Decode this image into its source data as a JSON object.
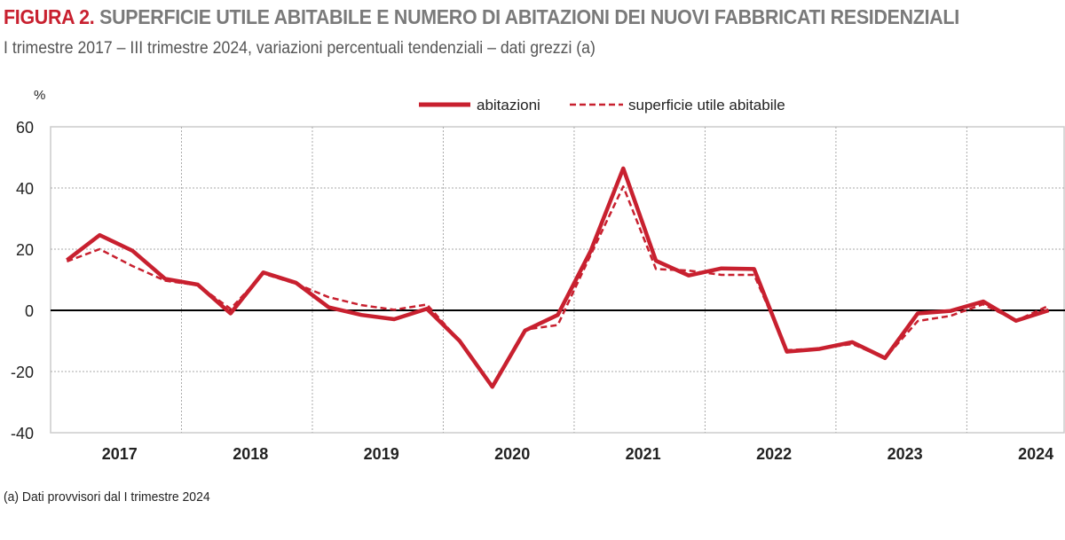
{
  "header": {
    "figure_label": "FIGURA 2.",
    "title": "SUPERFICIE UTILE ABITABILE E NUMERO DI ABITAZIONI DEI NUOVI FABBRICATI RESIDENZIALI",
    "subtitle": "I trimestre 2017 – III trimestre 2024, variazioni percentuali tendenziali – dati grezzi (a)"
  },
  "footnote": "(a) Dati provvisori dal I trimestre 2024",
  "chart_data": {
    "type": "line",
    "ylabel": "%",
    "ylim": [
      -40,
      60
    ],
    "yticks": [
      "60",
      "40",
      "20",
      "0",
      "-20",
      "-40"
    ],
    "year_labels": [
      "2017",
      "2018",
      "2019",
      "2020",
      "2021",
      "2022",
      "2023",
      "2024"
    ],
    "x": [
      "2017 Q1",
      "2017 Q2",
      "2017 Q3",
      "2017 Q4",
      "2018 Q1",
      "2018 Q2",
      "2018 Q3",
      "2018 Q4",
      "2019 Q1",
      "2019 Q2",
      "2019 Q3",
      "2019 Q4",
      "2020 Q1",
      "2020 Q2",
      "2020 Q3",
      "2020 Q4",
      "2021 Q1",
      "2021 Q2",
      "2021 Q3",
      "2021 Q4",
      "2022 Q1",
      "2022 Q2",
      "2022 Q3",
      "2022 Q4",
      "2023 Q1",
      "2023 Q2",
      "2023 Q3",
      "2023 Q4",
      "2024 Q1",
      "2024 Q2",
      "2024 Q3"
    ],
    "grid": true,
    "legend_position": "top",
    "series": [
      {
        "name": "abitazioni",
        "style": "solid",
        "color": "#c8202f",
        "values": [
          16.4,
          24.6,
          19.5,
          10.3,
          8.4,
          -1.0,
          12.4,
          9.0,
          1.0,
          -1.5,
          -2.9,
          0.5,
          -10.0,
          -25.0,
          -6.6,
          -1.5,
          19.3,
          46.4,
          16.2,
          11.4,
          13.7,
          13.5,
          -13.5,
          -12.6,
          -10.4,
          -15.6,
          -1.0,
          -0.2,
          2.9,
          -3.4,
          0.0
        ]
      },
      {
        "name": "superficie utile abitabile",
        "style": "dashed",
        "color": "#c8202f",
        "values": [
          16.0,
          20.0,
          14.5,
          9.7,
          8.2,
          0.5,
          12.0,
          8.7,
          4.3,
          1.7,
          0.2,
          1.9,
          -10.0,
          -25.0,
          -6.3,
          -4.8,
          18.0,
          40.5,
          13.5,
          13.0,
          11.6,
          11.6,
          -13.0,
          -12.5,
          -11.0,
          -15.6,
          -3.5,
          -1.8,
          2.0,
          -3.4,
          1.5
        ]
      }
    ]
  }
}
